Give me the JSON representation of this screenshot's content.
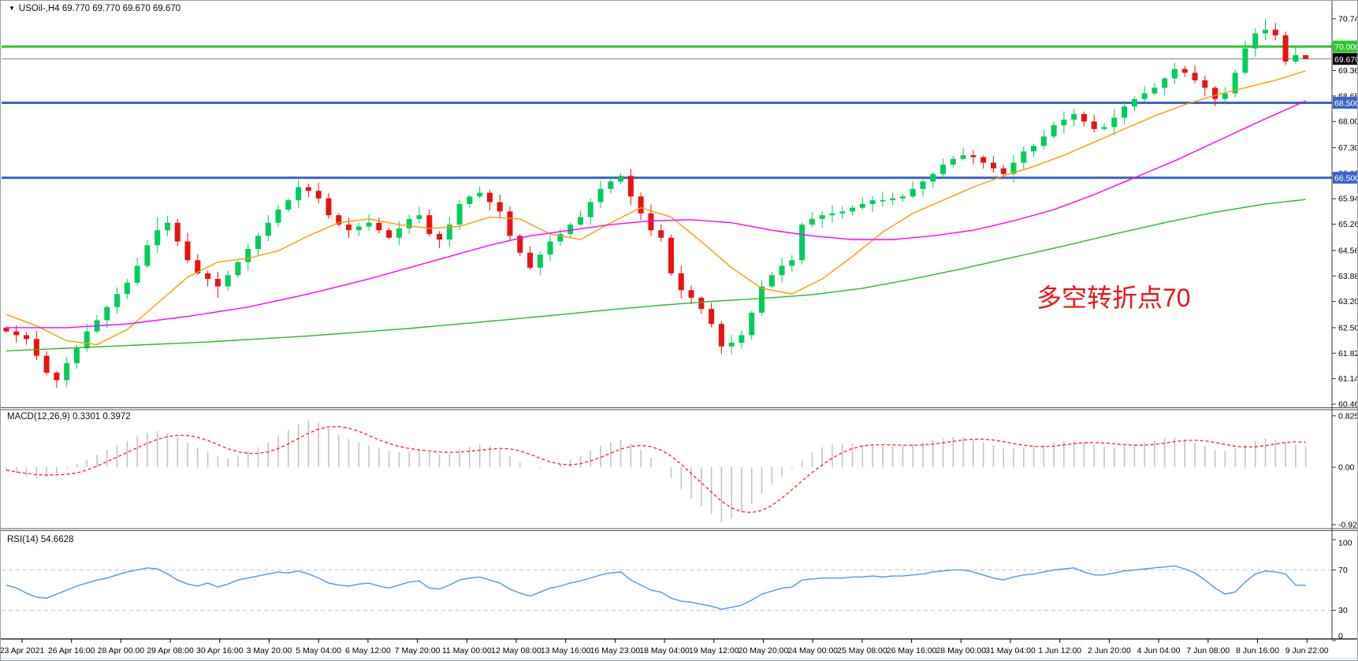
{
  "window": {
    "dropdown_icon": "▼",
    "title": "USOil-,H4  69.770 69.770 69.670 69.670"
  },
  "annotation": {
    "text": "多空转折点70",
    "color": "#f01414"
  },
  "indicators": {
    "macd_label": "MACD(12,26,9) 0.3301 0.3972",
    "rsi_label": "RSI(14) 54.6628"
  },
  "chart_data": {
    "type": "candlestick",
    "symbol": "USOil-",
    "timeframe": "H4",
    "last_bar_ohlc": {
      "open": 69.77,
      "high": 69.77,
      "low": 69.67,
      "close": 69.67
    },
    "ylim": [
      60.46,
      70.8
    ],
    "colors": {
      "bull": "#00ce5c",
      "bear": "#ec1212",
      "background": "#ffffff",
      "axis_text": "#000000"
    },
    "bars": {
      "open_rule": "previous_close",
      "first_open": 62.5,
      "closes": [
        62.4,
        62.3,
        62.2,
        61.75,
        61.3,
        61.1,
        61.55,
        61.95,
        62.4,
        62.7,
        63.05,
        63.4,
        63.7,
        64.15,
        64.7,
        65.1,
        65.3,
        64.8,
        64.3,
        63.95,
        63.8,
        63.6,
        63.9,
        64.25,
        64.6,
        64.95,
        65.3,
        65.65,
        65.9,
        66.25,
        66.15,
        65.95,
        65.5,
        65.25,
        65.1,
        65.2,
        65.3,
        65.1,
        64.9,
        65.15,
        65.4,
        65.5,
        65.0,
        64.85,
        65.25,
        65.8,
        66.0,
        66.1,
        65.85,
        65.6,
        64.95,
        64.5,
        64.1,
        64.45,
        64.8,
        65.0,
        65.25,
        65.45,
        65.85,
        66.2,
        66.4,
        66.55,
        66.0,
        65.55,
        65.1,
        64.9,
        63.95,
        63.5,
        63.3,
        63.0,
        62.6,
        62.0,
        62.1,
        62.3,
        62.9,
        63.6,
        63.9,
        64.15,
        64.3,
        65.25,
        65.4,
        65.5,
        65.55,
        65.6,
        65.7,
        65.8,
        65.9,
        65.9,
        65.95,
        66.0,
        66.2,
        66.4,
        66.6,
        66.85,
        67.0,
        67.1,
        67.05,
        66.9,
        66.75,
        66.6,
        66.9,
        67.2,
        67.35,
        67.6,
        67.9,
        68.05,
        68.2,
        68.0,
        67.8,
        67.85,
        68.1,
        68.4,
        68.6,
        68.75,
        68.9,
        69.15,
        69.4,
        69.3,
        69.1,
        68.9,
        68.6,
        68.75,
        69.3,
        69.95,
        70.35,
        70.45,
        70.3,
        69.6,
        69.77,
        69.67
      ],
      "default_wick": 0.12,
      "wick_overrides": {
        "5": {
          "low": 60.9
        },
        "15": {
          "high": 65.45
        },
        "21": {
          "low": 63.3
        },
        "29": {
          "high": 66.45
        },
        "61": {
          "high": 66.62
        },
        "71": {
          "low": 61.8
        },
        "125": {
          "high": 70.74
        },
        "129": {
          "high": 69.77,
          "low": 69.67
        }
      }
    },
    "moving_averages": [
      {
        "name": "ma-fast",
        "color": "#ff9c00",
        "points": [
          [
            0,
            62.85
          ],
          [
            3,
            62.55
          ],
          [
            6,
            62.15
          ],
          [
            9,
            62.05
          ],
          [
            12,
            62.45
          ],
          [
            15,
            63.15
          ],
          [
            18,
            63.85
          ],
          [
            21,
            64.25
          ],
          [
            24,
            64.35
          ],
          [
            27,
            64.55
          ],
          [
            30,
            64.95
          ],
          [
            33,
            65.3
          ],
          [
            36,
            65.4
          ],
          [
            39,
            65.25
          ],
          [
            42,
            65.15
          ],
          [
            45,
            65.2
          ],
          [
            48,
            65.45
          ],
          [
            51,
            65.4
          ],
          [
            54,
            65.0
          ],
          [
            57,
            64.85
          ],
          [
            60,
            65.3
          ],
          [
            63,
            65.7
          ],
          [
            66,
            65.45
          ],
          [
            69,
            64.8
          ],
          [
            72,
            64.1
          ],
          [
            75,
            63.55
          ],
          [
            78,
            63.4
          ],
          [
            81,
            63.8
          ],
          [
            84,
            64.4
          ],
          [
            87,
            65.05
          ],
          [
            90,
            65.55
          ],
          [
            93,
            65.9
          ],
          [
            96,
            66.25
          ],
          [
            99,
            66.55
          ],
          [
            102,
            66.8
          ],
          [
            105,
            67.1
          ],
          [
            108,
            67.45
          ],
          [
            111,
            67.8
          ],
          [
            114,
            68.15
          ],
          [
            117,
            68.45
          ],
          [
            120,
            68.7
          ],
          [
            123,
            68.9
          ],
          [
            126,
            69.1
          ],
          [
            129,
            69.35
          ]
        ]
      },
      {
        "name": "ma-medium",
        "color": "#ff00ff",
        "points": [
          [
            0,
            62.5
          ],
          [
            6,
            62.5
          ],
          [
            12,
            62.6
          ],
          [
            18,
            62.8
          ],
          [
            24,
            63.05
          ],
          [
            30,
            63.4
          ],
          [
            36,
            63.8
          ],
          [
            42,
            64.25
          ],
          [
            48,
            64.7
          ],
          [
            52,
            64.95
          ],
          [
            56,
            65.1
          ],
          [
            60,
            65.25
          ],
          [
            64,
            65.35
          ],
          [
            68,
            65.38
          ],
          [
            72,
            65.3
          ],
          [
            76,
            65.1
          ],
          [
            80,
            64.95
          ],
          [
            84,
            64.85
          ],
          [
            88,
            64.85
          ],
          [
            92,
            64.95
          ],
          [
            96,
            65.1
          ],
          [
            100,
            65.35
          ],
          [
            104,
            65.65
          ],
          [
            108,
            66.05
          ],
          [
            112,
            66.5
          ],
          [
            116,
            66.95
          ],
          [
            120,
            67.45
          ],
          [
            124,
            67.95
          ],
          [
            129,
            68.55
          ]
        ]
      },
      {
        "name": "ma-slow",
        "color": "#2db82d",
        "points": [
          [
            0,
            61.88
          ],
          [
            10,
            62.0
          ],
          [
            20,
            62.12
          ],
          [
            30,
            62.28
          ],
          [
            40,
            62.48
          ],
          [
            50,
            62.72
          ],
          [
            60,
            62.98
          ],
          [
            65,
            63.1
          ],
          [
            70,
            63.2
          ],
          [
            75,
            63.28
          ],
          [
            80,
            63.38
          ],
          [
            85,
            63.55
          ],
          [
            90,
            63.8
          ],
          [
            95,
            64.08
          ],
          [
            100,
            64.38
          ],
          [
            105,
            64.68
          ],
          [
            110,
            65.0
          ],
          [
            115,
            65.3
          ],
          [
            120,
            65.58
          ],
          [
            125,
            65.8
          ],
          [
            129,
            65.92
          ]
        ]
      }
    ],
    "levels": [
      {
        "price": 70.0,
        "color": "#2fc52f",
        "width": 3,
        "label": "70.000",
        "label_bg": "#2fc52f",
        "label_fg": "#ffffff"
      },
      {
        "price": 69.67,
        "color": "#808080",
        "width": 1,
        "label": "69.670",
        "label_bg": "#000000",
        "label_fg": "#ffffff"
      },
      {
        "price": 68.5,
        "color": "#3a64c8",
        "width": 3,
        "label": "68.500",
        "label_bg": "#3a64c8",
        "label_fg": "#ffffff"
      },
      {
        "price": 66.5,
        "color": "#3a64c8",
        "width": 3,
        "label": "66.500",
        "label_bg": "#3a64c8",
        "label_fg": "#ffffff"
      }
    ],
    "price_axis_ticks": [
      "70.740",
      "69.360",
      "68.680",
      "68.000",
      "67.300",
      "66.620",
      "65.940",
      "65.260",
      "64.560",
      "63.880",
      "63.200",
      "62.500",
      "61.820",
      "61.140",
      "60.460"
    ],
    "macd": {
      "params": "12,26,9",
      "final_macd": 0.3301,
      "final_signal": 0.3972,
      "axis_ticks": [
        0.8254,
        0.0,
        -0.9234
      ],
      "signal_window": 6,
      "values": [
        -0.05,
        -0.1,
        -0.15,
        -0.18,
        -0.15,
        -0.1,
        -0.02,
        0.05,
        0.12,
        0.2,
        0.28,
        0.35,
        0.42,
        0.5,
        0.55,
        0.58,
        0.55,
        0.48,
        0.4,
        0.32,
        0.25,
        0.18,
        0.15,
        0.18,
        0.25,
        0.32,
        0.4,
        0.5,
        0.6,
        0.7,
        0.75,
        0.72,
        0.62,
        0.52,
        0.45,
        0.4,
        0.35,
        0.3,
        0.26,
        0.24,
        0.25,
        0.27,
        0.24,
        0.2,
        0.22,
        0.28,
        0.33,
        0.36,
        0.34,
        0.28,
        0.18,
        0.08,
        0.0,
        -0.02,
        0.0,
        0.05,
        0.12,
        0.18,
        0.26,
        0.34,
        0.4,
        0.44,
        0.38,
        0.28,
        0.15,
        0.0,
        -0.18,
        -0.35,
        -0.5,
        -0.62,
        -0.75,
        -0.88,
        -0.82,
        -0.72,
        -0.58,
        -0.42,
        -0.28,
        -0.15,
        -0.02,
        0.12,
        0.24,
        0.32,
        0.36,
        0.38,
        0.38,
        0.36,
        0.35,
        0.34,
        0.34,
        0.35,
        0.37,
        0.4,
        0.43,
        0.46,
        0.48,
        0.48,
        0.45,
        0.4,
        0.35,
        0.3,
        0.3,
        0.32,
        0.34,
        0.37,
        0.4,
        0.42,
        0.43,
        0.4,
        0.36,
        0.33,
        0.32,
        0.34,
        0.37,
        0.4,
        0.43,
        0.46,
        0.47,
        0.44,
        0.4,
        0.34,
        0.28,
        0.26,
        0.3,
        0.36,
        0.42,
        0.46,
        0.44,
        0.4,
        0.36,
        0.33
      ],
      "colors": {
        "histogram": "#c4c4c4",
        "signal": "#ff2020"
      }
    },
    "rsi": {
      "period": 14,
      "final": 54.6628,
      "axis_ticks": [
        100,
        70,
        30,
        0
      ],
      "guide_levels": [
        70,
        30
      ],
      "color": "#4c9be8",
      "values": [
        55,
        52,
        47,
        43,
        42,
        46,
        50,
        54,
        57,
        60,
        62,
        65,
        68,
        70,
        72,
        71,
        66,
        60,
        56,
        54,
        57,
        53,
        56,
        60,
        62,
        64,
        66,
        68,
        67,
        69,
        66,
        62,
        57,
        55,
        54,
        56,
        57,
        54,
        52,
        55,
        58,
        59,
        52,
        51,
        55,
        60,
        62,
        63,
        60,
        57,
        51,
        47,
        44,
        48,
        52,
        54,
        57,
        59,
        62,
        65,
        67,
        68,
        60,
        55,
        50,
        48,
        42,
        39,
        38,
        36,
        34,
        31,
        33,
        35,
        40,
        46,
        49,
        52,
        53,
        60,
        61,
        62,
        62,
        62,
        63,
        63,
        64,
        63,
        64,
        64,
        65,
        66,
        68,
        69,
        70,
        70,
        68,
        65,
        62,
        60,
        63,
        65,
        66,
        68,
        70,
        71,
        72,
        68,
        65,
        65,
        67,
        69,
        70,
        71,
        72,
        73,
        74,
        71,
        67,
        60,
        52,
        46,
        48,
        58,
        66,
        69,
        68,
        66,
        55,
        54.66
      ]
    },
    "time_axis_labels": [
      "23 Apr 2021",
      "26 Apr 16:00",
      "28 Apr 00:00",
      "29 Apr 08:00",
      "30 Apr 16:00",
      "3 May 20:00",
      "5 May 04:00",
      "6 May 12:00",
      "7 May 20:00",
      "11 May 00:00",
      "12 May 08:00",
      "13 May 16:00",
      "16 May 23:00",
      "18 May 04:00",
      "19 May 12:00",
      "20 May 20:00",
      "24 May 00:00",
      "25 May 08:00",
      "26 May 16:00",
      "28 May 00:00",
      "31 May 04:00",
      "1 Jun 12:00",
      "2 Jun 20:00",
      "4 Jun 04:00",
      "7 Jun 08:00",
      "8 Jun 16:00",
      "9 Jun 22:00"
    ]
  }
}
